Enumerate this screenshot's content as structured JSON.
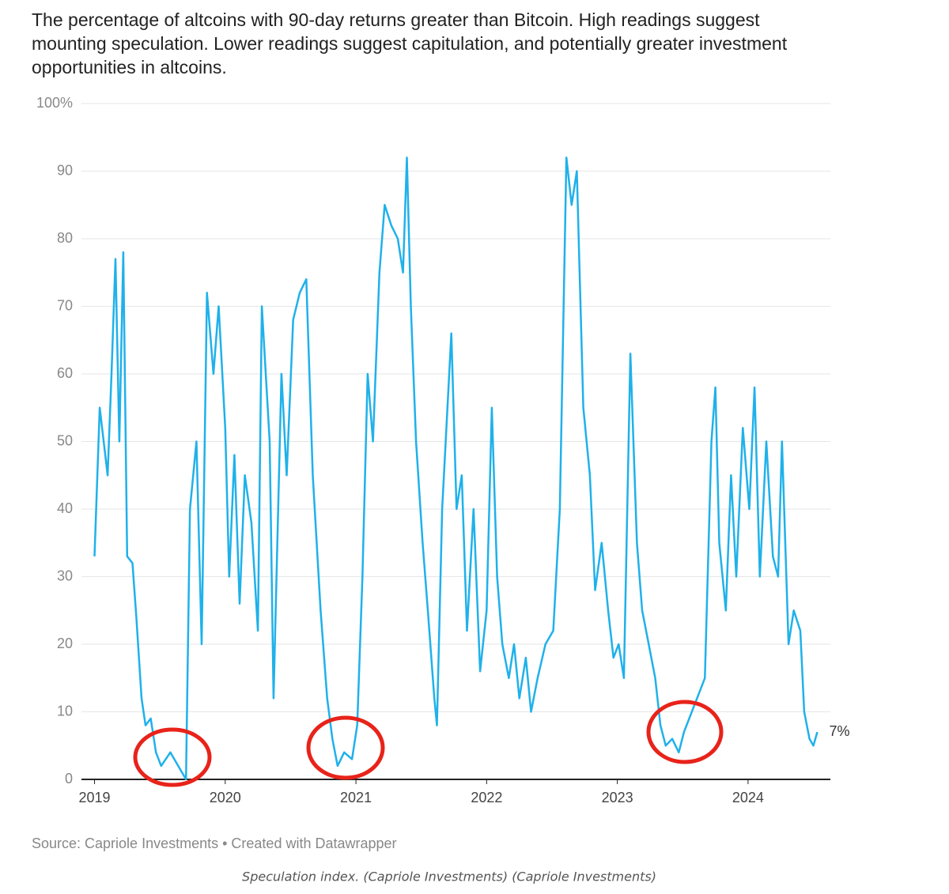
{
  "chart_data": {
    "type": "line",
    "title": [
      "The percentage of altcoins with 90-day returns greater than Bitcoin. High readings suggest",
      "mounting speculation. Lower readings suggest capitulation, and potentially greater investment",
      "opportunities in altcoins."
    ],
    "source": "Source: Capriole Investments • Created with Datawrapper",
    "caption": "Speculation index. (Capriole Investments) (Capriole Investments)",
    "color": "#1fb1ea",
    "x": [
      2019.0,
      2019.04,
      2019.1,
      2019.13,
      2019.16,
      2019.19,
      2019.22,
      2019.25,
      2019.29,
      2019.32,
      2019.36,
      2019.39,
      2019.43,
      2019.47,
      2019.51,
      2019.58,
      2019.64,
      2019.7,
      2019.73,
      2019.78,
      2019.82,
      2019.86,
      2019.91,
      2019.95,
      2020.0,
      2020.03,
      2020.07,
      2020.11,
      2020.15,
      2020.2,
      2020.25,
      2020.28,
      2020.34,
      2020.37,
      2020.43,
      2020.47,
      2020.52,
      2020.57,
      2020.62,
      2020.67,
      2020.73,
      2020.78,
      2020.82,
      2020.86,
      2020.91,
      2020.97,
      2021.01,
      2021.05,
      2021.09,
      2021.13,
      2021.18,
      2021.22,
      2021.27,
      2021.32,
      2021.36,
      2021.39,
      2021.42,
      2021.46,
      2021.51,
      2021.55,
      2021.6,
      2021.62,
      2021.66,
      2021.7,
      2021.73,
      2021.77,
      2021.81,
      2021.85,
      2021.9,
      2021.95,
      2022.0,
      2022.04,
      2022.08,
      2022.12,
      2022.17,
      2022.21,
      2022.25,
      2022.3,
      2022.34,
      2022.39,
      2022.45,
      2022.51,
      2022.56,
      2022.61,
      2022.65,
      2022.69,
      2022.74,
      2022.79,
      2022.83,
      2022.88,
      2022.93,
      2022.97,
      2023.01,
      2023.05,
      2023.1,
      2023.15,
      2023.19,
      2023.24,
      2023.29,
      2023.33,
      2023.37,
      2023.42,
      2023.47,
      2023.51,
      2023.57,
      2023.63,
      2023.67,
      2023.72,
      2023.75,
      2023.78,
      2023.83,
      2023.87,
      2023.91,
      2023.96,
      2024.01,
      2024.05,
      2024.09,
      2024.14,
      2024.19,
      2024.23,
      2024.26,
      2024.31,
      2024.35,
      2024.4,
      2024.43,
      2024.47,
      2024.5,
      2024.53
    ],
    "values": [
      33,
      55,
      45,
      60,
      77,
      50,
      78,
      33,
      32,
      24,
      12,
      8,
      9,
      4,
      2,
      4,
      2,
      0,
      40,
      50,
      20,
      72,
      60,
      70,
      52,
      30,
      48,
      26,
      45,
      38,
      22,
      70,
      50,
      12,
      60,
      45,
      68,
      72,
      74,
      45,
      25,
      12,
      6,
      2,
      4,
      3,
      8,
      30,
      60,
      50,
      75,
      85,
      82,
      80,
      75,
      92,
      70,
      50,
      35,
      25,
      12,
      8,
      40,
      55,
      66,
      40,
      45,
      22,
      40,
      16,
      25,
      55,
      30,
      20,
      15,
      20,
      12,
      18,
      10,
      15,
      20,
      22,
      40,
      92,
      85,
      90,
      55,
      45,
      28,
      35,
      25,
      18,
      20,
      15,
      63,
      35,
      25,
      20,
      15,
      8,
      5,
      6,
      4,
      7,
      10,
      13,
      15,
      50,
      58,
      35,
      25,
      45,
      30,
      52,
      40,
      58,
      30,
      50,
      33,
      30,
      50,
      20,
      25,
      22,
      10,
      6,
      5,
      7
    ],
    "end_label": "7%",
    "xlim": [
      2018.9,
      2024.63
    ],
    "xticks": [
      2019,
      2020,
      2021,
      2022,
      2023,
      2024
    ],
    "ylim": [
      0,
      100
    ],
    "yticks": [
      0,
      10,
      20,
      30,
      40,
      50,
      60,
      70,
      80,
      90,
      {
        "value": 100,
        "label": "100%"
      }
    ],
    "grid": true
  }
}
